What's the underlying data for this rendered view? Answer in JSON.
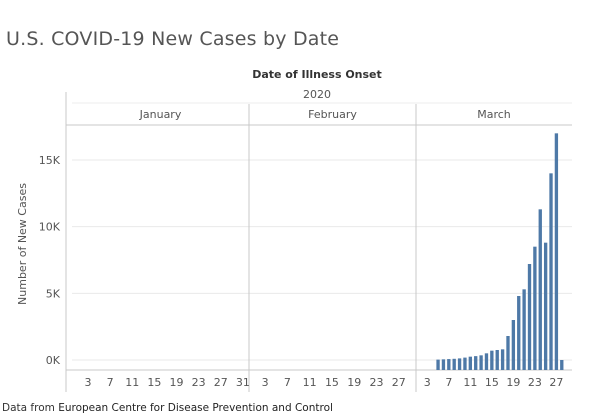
{
  "title": "U.S. COVID-19 New Cases by Date",
  "source": {
    "prefix": "Data from",
    "name": "European Centre for Disease Prevention and Control"
  },
  "colors": {
    "bar": "#4e79a7",
    "grid": "#e9e9e9",
    "divider": "#c8c8c8",
    "text": "#555555"
  },
  "chart_data": {
    "type": "bar",
    "title": "U.S. COVID-19 New Cases by Date",
    "xlabel": "Date of Illness Onset",
    "ylabel": "Number of New Cases",
    "year_label": "2020",
    "grid": true,
    "ylim": [
      0,
      18000
    ],
    "y_ticks": [
      {
        "value": 0,
        "label": "0K"
      },
      {
        "value": 5000,
        "label": "5K"
      },
      {
        "value": 10000,
        "label": "10K"
      },
      {
        "value": 15000,
        "label": "15K"
      }
    ],
    "months": [
      {
        "name": "January",
        "days": 31,
        "tick_days": [
          3,
          7,
          11,
          15,
          19,
          23,
          27,
          31
        ]
      },
      {
        "name": "February",
        "days": 29,
        "tick_days": [
          3,
          7,
          11,
          15,
          19,
          23,
          27
        ]
      },
      {
        "name": "March",
        "days": 28,
        "tick_days": [
          3,
          7,
          11,
          15,
          19,
          23,
          27
        ]
      }
    ],
    "series": [
      {
        "month": "March",
        "days": [
          5,
          6,
          7,
          8,
          9,
          10,
          11,
          12,
          13,
          14,
          15,
          16,
          17,
          18,
          19,
          20,
          21,
          22,
          23,
          24,
          25,
          26,
          27,
          28
        ],
        "values": [
          30,
          50,
          70,
          90,
          120,
          180,
          250,
          290,
          350,
          500,
          700,
          750,
          800,
          1800,
          3000,
          4800,
          5300,
          7200,
          8500,
          11300,
          8800,
          14000,
          17000,
          0
        ]
      }
    ]
  }
}
